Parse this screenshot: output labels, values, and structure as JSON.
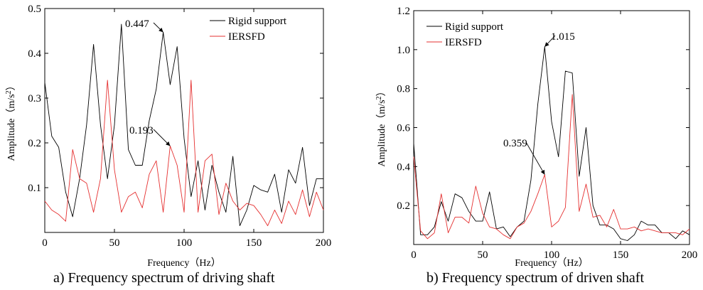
{
  "chart_data": [
    {
      "type": "line",
      "caption": "a) Frequency spectrum of driving shaft",
      "xlabel": "Frequency（Hz）",
      "ylabel_main": "Amplitude（m/s",
      "ylabel_sup": "2",
      "ylabel_end": "）",
      "xlim": [
        0,
        200
      ],
      "ylim": [
        0,
        0.5
      ],
      "xticks": [
        0,
        50,
        100,
        150,
        200
      ],
      "yticks": [
        0.1,
        0.2,
        0.3,
        0.4,
        0.5
      ],
      "yticklabels": [
        "0.1",
        "0.2",
        "0.3",
        "0.4",
        "0.5"
      ],
      "legend_position": "top-right",
      "grid": false,
      "series": [
        {
          "name": "Rigid support",
          "color": "#000000",
          "x": [
            0,
            5,
            10,
            15,
            20,
            25,
            30,
            35,
            40,
            45,
            50,
            55,
            60,
            65,
            70,
            75,
            80,
            85,
            90,
            95,
            100,
            105,
            110,
            115,
            120,
            125,
            130,
            135,
            140,
            145,
            150,
            155,
            160,
            165,
            170,
            175,
            180,
            185,
            190,
            195,
            200
          ],
          "y": [
            0.335,
            0.215,
            0.19,
            0.09,
            0.035,
            0.12,
            0.24,
            0.42,
            0.24,
            0.12,
            0.24,
            0.465,
            0.185,
            0.15,
            0.15,
            0.25,
            0.32,
            0.447,
            0.33,
            0.415,
            0.21,
            0.08,
            0.16,
            0.05,
            0.15,
            0.09,
            0.045,
            0.17,
            0.015,
            0.05,
            0.105,
            0.095,
            0.09,
            0.13,
            0.045,
            0.14,
            0.11,
            0.19,
            0.06,
            0.12,
            0.12
          ]
        },
        {
          "name": "IERSFD",
          "color": "#e53030",
          "x": [
            0,
            5,
            10,
            15,
            20,
            25,
            30,
            35,
            40,
            45,
            50,
            55,
            60,
            65,
            70,
            75,
            80,
            85,
            90,
            95,
            100,
            105,
            110,
            115,
            120,
            125,
            130,
            135,
            140,
            145,
            150,
            155,
            160,
            165,
            170,
            175,
            180,
            185,
            190,
            195,
            200
          ],
          "y": [
            0.07,
            0.05,
            0.04,
            0.025,
            0.185,
            0.12,
            0.11,
            0.045,
            0.12,
            0.34,
            0.14,
            0.045,
            0.08,
            0.09,
            0.055,
            0.13,
            0.16,
            0.045,
            0.193,
            0.15,
            0.045,
            0.34,
            0.045,
            0.16,
            0.175,
            0.04,
            0.11,
            0.07,
            0.05,
            0.065,
            0.06,
            0.04,
            0.015,
            0.05,
            0.02,
            0.07,
            0.04,
            0.095,
            0.035,
            0.09,
            0.05
          ]
        }
      ],
      "annotations": [
        {
          "text": "0.447",
          "x": 85,
          "y": 0.447
        },
        {
          "text": "0.193",
          "x": 90,
          "y": 0.193
        }
      ]
    },
    {
      "type": "line",
      "caption": "b) Frequency spectrum of driven shaft",
      "xlabel": "Frequency（Hz）",
      "ylabel_main": "Amplitude（m/s",
      "ylabel_sup": "2",
      "ylabel_end": "）",
      "xlim": [
        0,
        200
      ],
      "ylim": [
        0,
        1.2
      ],
      "xticks": [
        0,
        50,
        100,
        150,
        200
      ],
      "yticks": [
        0.2,
        0.4,
        0.6,
        0.8,
        1.0,
        1.2
      ],
      "yticklabels": [
        "0.2",
        "0.4",
        "0.6",
        "0.8",
        "1.0",
        "1.2"
      ],
      "legend_position": "top-left",
      "grid": false,
      "series": [
        {
          "name": "Rigid support",
          "color": "#000000",
          "x": [
            0,
            5,
            10,
            15,
            20,
            25,
            30,
            35,
            40,
            45,
            50,
            55,
            60,
            65,
            70,
            75,
            80,
            85,
            90,
            95,
            100,
            105,
            110,
            115,
            120,
            125,
            130,
            135,
            140,
            145,
            150,
            155,
            160,
            165,
            170,
            175,
            180,
            185,
            190,
            195,
            200
          ],
          "y": [
            0.52,
            0.05,
            0.05,
            0.09,
            0.22,
            0.12,
            0.26,
            0.24,
            0.17,
            0.12,
            0.12,
            0.27,
            0.08,
            0.09,
            0.04,
            0.09,
            0.12,
            0.33,
            0.72,
            1.015,
            0.63,
            0.45,
            0.89,
            0.88,
            0.35,
            0.6,
            0.2,
            0.1,
            0.1,
            0.08,
            0.03,
            0.02,
            0.05,
            0.12,
            0.1,
            0.1,
            0.06,
            0.06,
            0.03,
            0.07,
            0.05
          ]
        },
        {
          "name": "IERSFD",
          "color": "#e53030",
          "x": [
            0,
            5,
            10,
            15,
            20,
            25,
            30,
            35,
            40,
            45,
            50,
            55,
            60,
            65,
            70,
            75,
            80,
            85,
            90,
            95,
            100,
            105,
            110,
            115,
            120,
            125,
            130,
            135,
            140,
            145,
            150,
            155,
            160,
            165,
            170,
            175,
            180,
            185,
            190,
            195,
            200
          ],
          "y": [
            0.45,
            0.07,
            0.03,
            0.06,
            0.26,
            0.06,
            0.14,
            0.14,
            0.11,
            0.3,
            0.16,
            0.09,
            0.08,
            0.05,
            0.03,
            0.09,
            0.11,
            0.17,
            0.26,
            0.359,
            0.09,
            0.12,
            0.19,
            0.77,
            0.17,
            0.31,
            0.14,
            0.15,
            0.09,
            0.18,
            0.08,
            0.08,
            0.09,
            0.07,
            0.08,
            0.07,
            0.06,
            0.06,
            0.06,
            0.05,
            0.08
          ]
        }
      ],
      "annotations": [
        {
          "text": "1.015",
          "x": 95,
          "y": 1.015
        },
        {
          "text": "0.359",
          "x": 95,
          "y": 0.359
        }
      ]
    }
  ]
}
